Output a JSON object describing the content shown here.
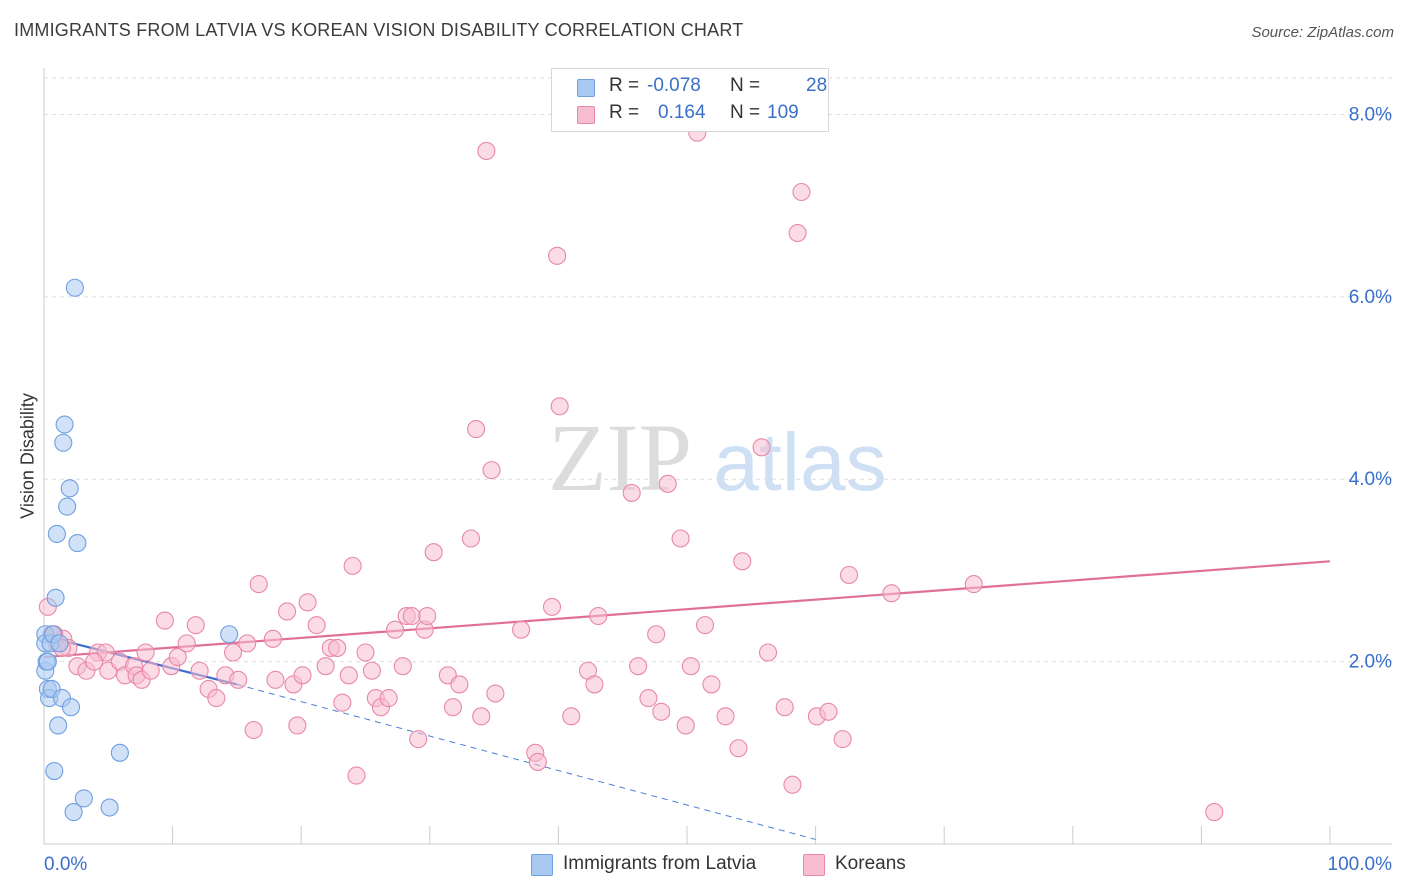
{
  "title": "IMMIGRANTS FROM LATVIA VS KOREAN VISION DISABILITY CORRELATION CHART",
  "source": "Source: ZipAtlas.com",
  "watermark": {
    "part1": "ZIP",
    "part2": "atlas"
  },
  "legend": {
    "rows": [
      {
        "r_label": "R =",
        "r_value": "-0.078",
        "n_label": "N =",
        "n_value": "28",
        "color": "#a9c9f2",
        "border": "#6fa0e0"
      },
      {
        "r_label": "R =",
        "r_value": "0.164",
        "n_label": "N =",
        "n_value": "109",
        "color": "#f7bdd0",
        "border": "#e888a8"
      }
    ]
  },
  "bottom_legend": [
    {
      "label": "Immigrants from Latvia",
      "color": "#a9c9f2",
      "border": "#6fa0e0"
    },
    {
      "label": "Koreans",
      "color": "#f7bdd0",
      "border": "#e888a8"
    }
  ],
  "chart_data": {
    "type": "scatter",
    "title": "IMMIGRANTS FROM LATVIA VS KOREAN VISION DISABILITY CORRELATION CHART",
    "xlabel": "",
    "ylabel": "Vision Disability",
    "xlim": [
      0,
      100
    ],
    "ylim": [
      0,
      8.4
    ],
    "x_tick_labels": [
      "0.0%",
      "100.0%"
    ],
    "y_ticks": [
      2,
      4,
      6,
      8
    ],
    "y_tick_labels": [
      "2.0%",
      "4.0%",
      "6.0%",
      "8.0%"
    ],
    "grid": true,
    "legend_position": "top-center",
    "series": [
      {
        "name": "Immigrants from Latvia",
        "color": "#6fa0e0",
        "fill": "#a9c9f2",
        "points": [
          [
            0.1,
            2.3
          ],
          [
            0.1,
            2.2
          ],
          [
            0.1,
            1.9
          ],
          [
            0.2,
            2.0
          ],
          [
            0.3,
            1.7
          ],
          [
            0.4,
            1.6
          ],
          [
            0.5,
            2.2
          ],
          [
            0.6,
            1.7
          ],
          [
            0.7,
            2.3
          ],
          [
            0.8,
            0.8
          ],
          [
            0.9,
            2.7
          ],
          [
            1.0,
            3.4
          ],
          [
            1.1,
            1.3
          ],
          [
            1.2,
            2.2
          ],
          [
            1.4,
            1.6
          ],
          [
            1.5,
            4.4
          ],
          [
            1.6,
            4.6
          ],
          [
            1.8,
            3.7
          ],
          [
            2.0,
            3.9
          ],
          [
            2.1,
            1.5
          ],
          [
            2.3,
            0.35
          ],
          [
            2.4,
            6.1
          ],
          [
            2.6,
            3.3
          ],
          [
            3.1,
            0.5
          ],
          [
            5.1,
            0.4
          ],
          [
            5.9,
            1.0
          ],
          [
            14.4,
            2.3
          ],
          [
            0.3,
            2.0
          ]
        ],
        "trend": {
          "x0": 0,
          "y0": 2.28,
          "x1": 15,
          "y1": 1.75,
          "dashed_to_x": 60,
          "dashed_to_y": 0.05
        }
      },
      {
        "name": "Koreans",
        "color": "#e888a8",
        "fill": "#f7bdd0",
        "points": [
          [
            0.3,
            2.6
          ],
          [
            0.6,
            2.3
          ],
          [
            1.0,
            2.2
          ],
          [
            1.5,
            2.25
          ],
          [
            1.9,
            2.15
          ],
          [
            2.6,
            1.95
          ],
          [
            3.3,
            1.9
          ],
          [
            4.2,
            2.1
          ],
          [
            4.8,
            2.1
          ],
          [
            5.0,
            1.9
          ],
          [
            5.9,
            2.0
          ],
          [
            6.3,
            1.85
          ],
          [
            7.0,
            1.95
          ],
          [
            7.2,
            1.85
          ],
          [
            7.6,
            1.8
          ],
          [
            7.9,
            2.1
          ],
          [
            8.3,
            1.9
          ],
          [
            9.4,
            2.45
          ],
          [
            9.9,
            1.95
          ],
          [
            10.4,
            2.05
          ],
          [
            11.1,
            2.2
          ],
          [
            11.8,
            2.4
          ],
          [
            12.1,
            1.9
          ],
          [
            12.8,
            1.7
          ],
          [
            13.4,
            1.6
          ],
          [
            14.1,
            1.85
          ],
          [
            14.7,
            2.1
          ],
          [
            15.1,
            1.8
          ],
          [
            15.8,
            2.2
          ],
          [
            16.3,
            1.25
          ],
          [
            16.7,
            2.85
          ],
          [
            17.8,
            2.25
          ],
          [
            18.0,
            1.8
          ],
          [
            18.9,
            2.55
          ],
          [
            19.4,
            1.75
          ],
          [
            19.7,
            1.3
          ],
          [
            20.1,
            1.85
          ],
          [
            20.5,
            2.65
          ],
          [
            21.2,
            2.4
          ],
          [
            21.9,
            1.95
          ],
          [
            22.3,
            2.15
          ],
          [
            22.8,
            2.15
          ],
          [
            23.2,
            1.55
          ],
          [
            23.7,
            1.85
          ],
          [
            24.0,
            3.05
          ],
          [
            24.3,
            0.75
          ],
          [
            25.0,
            2.1
          ],
          [
            25.5,
            1.9
          ],
          [
            25.8,
            1.6
          ],
          [
            26.2,
            1.5
          ],
          [
            26.8,
            1.6
          ],
          [
            27.3,
            2.35
          ],
          [
            27.9,
            1.95
          ],
          [
            28.2,
            2.5
          ],
          [
            28.6,
            2.5
          ],
          [
            29.1,
            1.15
          ],
          [
            29.6,
            2.35
          ],
          [
            29.8,
            2.5
          ],
          [
            30.3,
            3.2
          ],
          [
            31.4,
            1.85
          ],
          [
            31.8,
            1.5
          ],
          [
            32.3,
            1.75
          ],
          [
            33.2,
            3.35
          ],
          [
            33.6,
            4.55
          ],
          [
            34.0,
            1.4
          ],
          [
            34.4,
            7.6
          ],
          [
            34.8,
            4.1
          ],
          [
            35.1,
            1.65
          ],
          [
            37.1,
            2.35
          ],
          [
            38.2,
            1.0
          ],
          [
            38.4,
            0.9
          ],
          [
            39.5,
            2.6
          ],
          [
            39.9,
            6.45
          ],
          [
            40.1,
            4.8
          ],
          [
            41.0,
            1.4
          ],
          [
            42.3,
            1.9
          ],
          [
            42.8,
            1.75
          ],
          [
            43.1,
            2.5
          ],
          [
            45.7,
            3.85
          ],
          [
            46.2,
            1.95
          ],
          [
            47.0,
            1.6
          ],
          [
            47.6,
            2.3
          ],
          [
            48.0,
            1.45
          ],
          [
            48.5,
            3.95
          ],
          [
            49.5,
            3.35
          ],
          [
            49.9,
            1.3
          ],
          [
            50.3,
            1.95
          ],
          [
            50.8,
            7.8
          ],
          [
            51.4,
            2.4
          ],
          [
            51.9,
            1.75
          ],
          [
            53.0,
            1.4
          ],
          [
            54.0,
            1.05
          ],
          [
            54.3,
            3.1
          ],
          [
            55.8,
            4.35
          ],
          [
            56.3,
            2.1
          ],
          [
            57.6,
            1.5
          ],
          [
            58.2,
            0.65
          ],
          [
            58.6,
            6.7
          ],
          [
            58.9,
            7.15
          ],
          [
            60.1,
            1.4
          ],
          [
            61.0,
            1.45
          ],
          [
            62.1,
            1.15
          ],
          [
            62.6,
            2.95
          ],
          [
            65.9,
            2.75
          ],
          [
            72.3,
            2.85
          ],
          [
            91.0,
            0.35
          ],
          [
            0.8,
            2.3
          ],
          [
            1.4,
            2.15
          ],
          [
            3.9,
            2.0
          ]
        ],
        "trend": {
          "x0": 0,
          "y0": 2.05,
          "x1": 100,
          "y1": 3.1
        }
      }
    ]
  }
}
